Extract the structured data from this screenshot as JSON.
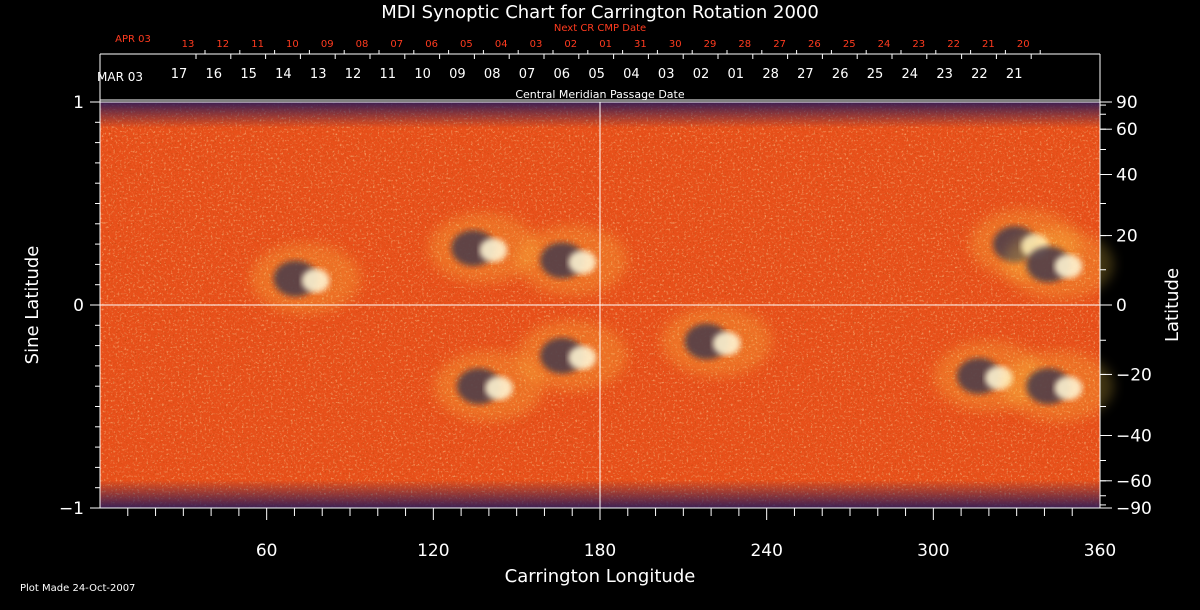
{
  "chart_data": {
    "type": "heatmap",
    "title": "MDI Synoptic Chart for Carrington Rotation 2000",
    "xlabel": "Carrington Longitude",
    "ylabel_left": "Sine Latitude",
    "ylabel_right": "Latitude",
    "xlim": [
      0,
      360
    ],
    "ylim": [
      -1,
      1
    ],
    "x_ticks": [
      60,
      120,
      180,
      240,
      300,
      360
    ],
    "y_ticks_left": [
      1,
      0,
      -1
    ],
    "y_ticks_left_labels": [
      "1",
      "0",
      "−1"
    ],
    "y_ticks_right_deg": [
      90,
      60,
      40,
      20,
      0,
      -20,
      -40,
      -60,
      -90
    ],
    "y_ticks_right_labels": [
      "90",
      "60",
      "40",
      "20",
      "0",
      "−20",
      "−40",
      "−60",
      "−90"
    ],
    "grid_lines": {
      "x": [
        180
      ],
      "y": [
        0
      ]
    },
    "top_axis_label": "Next CR CMP Date",
    "bottom_date_axis_label": "Central Meridian Passage Date",
    "next_cr_month": "APR 03",
    "next_cr_dates": [
      "13",
      "12",
      "11",
      "10",
      "09",
      "08",
      "07",
      "06",
      "05",
      "04",
      "03",
      "02",
      "01",
      "31",
      "30",
      "29",
      "28",
      "27",
      "26",
      "25",
      "24",
      "23",
      "22",
      "21",
      "20"
    ],
    "cmp_month": "MAR 03",
    "cmp_dates": [
      "17",
      "16",
      "15",
      "14",
      "13",
      "12",
      "11",
      "10",
      "09",
      "08",
      "07",
      "06",
      "05",
      "04",
      "03",
      "02",
      "01",
      "28",
      "27",
      "26",
      "25",
      "24",
      "23",
      "22",
      "21"
    ],
    "active_regions": [
      {
        "lon": 74,
        "sinlat": 0.13,
        "polarity": "bipolar"
      },
      {
        "lon": 138,
        "sinlat": 0.28,
        "polarity": "bipolar"
      },
      {
        "lon": 170,
        "sinlat": 0.22,
        "polarity": "bipolar"
      },
      {
        "lon": 170,
        "sinlat": -0.25,
        "polarity": "bipolar"
      },
      {
        "lon": 140,
        "sinlat": -0.4,
        "polarity": "bipolar"
      },
      {
        "lon": 222,
        "sinlat": -0.18,
        "polarity": "bipolar"
      },
      {
        "lon": 333,
        "sinlat": 0.3,
        "polarity": "bipolar"
      },
      {
        "lon": 345,
        "sinlat": 0.2,
        "polarity": "bipolar"
      },
      {
        "lon": 320,
        "sinlat": -0.35,
        "polarity": "bipolar"
      },
      {
        "lon": 345,
        "sinlat": -0.4,
        "polarity": "bipolar"
      }
    ],
    "colors": {
      "background": "#e8501a",
      "positive": "#ffffff",
      "negative": "#16104a",
      "axis": "#ffffff",
      "date_red": "#ff3b1f"
    }
  },
  "footer": {
    "plot_made": "Plot Made 24-Oct-2007"
  }
}
